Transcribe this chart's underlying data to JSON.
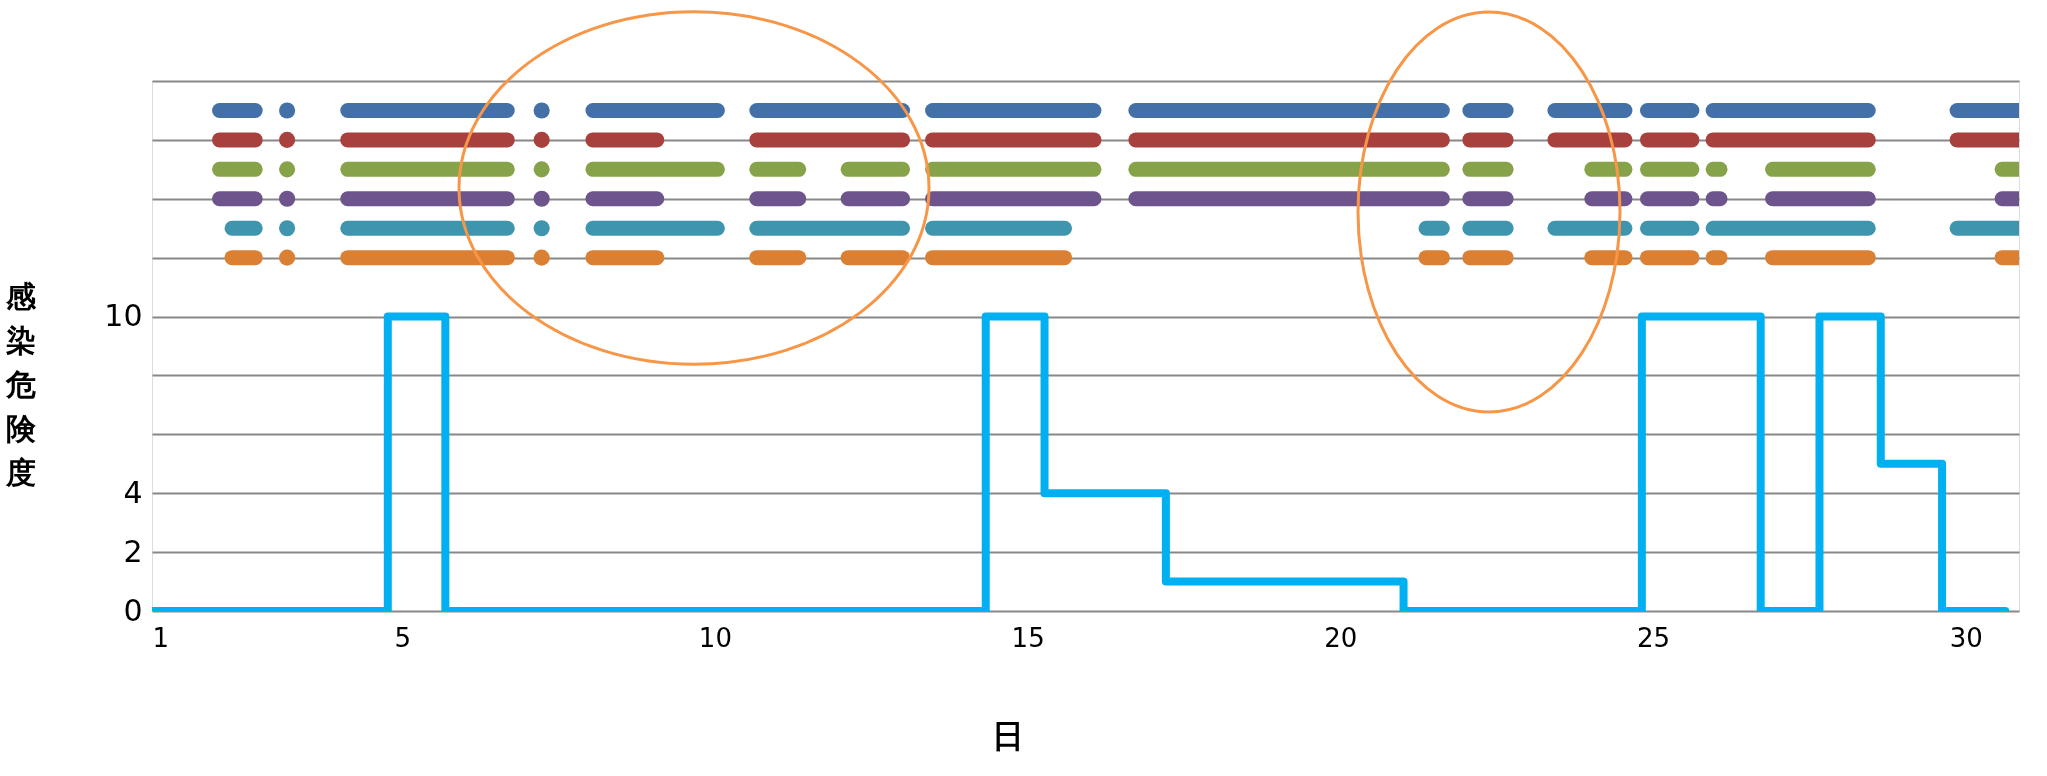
{
  "chart_data": {
    "type": "step",
    "xlabel": "日",
    "ylabel": "感染危険度",
    "xlim": [
      1,
      30.85
    ],
    "ylim": [
      0,
      18
    ],
    "xticks": [
      1,
      5,
      10,
      15,
      20,
      25,
      30
    ],
    "yticks": [
      0,
      2,
      4,
      {
        "value": 6,
        "label": null
      },
      {
        "value": 8,
        "label": null
      },
      10,
      {
        "value": 12,
        "label": null
      },
      {
        "value": 14,
        "label": null
      },
      {
        "value": 16,
        "label": null
      },
      {
        "value": 18,
        "label": null
      }
    ],
    "grid": "y",
    "line_style": "solid",
    "series": [
      {
        "type": "step",
        "color": "#00b0f0",
        "x": [
          1,
          4.77,
          5.69,
          14.33,
          15.27,
          17.21,
          21.01,
          24.82,
          26.72,
          27.66,
          28.64,
          29.62,
          30.63
        ],
        "values": [
          0,
          10,
          0,
          10,
          4,
          1,
          0,
          10,
          0,
          10,
          5,
          0,
          0
        ]
      },
      {
        "type": "line",
        "color": "#4470a8",
        "x": [
          2.08,
          2.65,
          3.6,
          4.13,
          6.68,
          7.6,
          8.05,
          10.04,
          10.3,
          10.67,
          13.0,
          13.2,
          13.48,
          16.06,
          16.4,
          16.73,
          21.63,
          21.8,
          22.07,
          22.65,
          23.0,
          23.43,
          24.55,
          24.7,
          24.91,
          25.62,
          25.8,
          25.96,
          28.44,
          29.1,
          29.86,
          30.85
        ],
        "values": [
          17,
          17,
          null,
          17,
          17,
          null,
          17,
          17,
          null,
          17,
          17,
          null,
          17,
          17,
          null,
          17,
          17,
          null,
          17,
          17,
          null,
          17,
          17,
          null,
          17,
          17,
          null,
          17,
          17,
          null,
          17,
          17
        ]
      },
      {
        "type": "line",
        "color": "#a8403e",
        "x": [
          2.08,
          2.65,
          3.6,
          4.13,
          6.68,
          7.6,
          8.05,
          9.07,
          9.8,
          10.67,
          13.0,
          13.2,
          13.48,
          16.06,
          16.4,
          16.73,
          21.63,
          21.8,
          22.07,
          22.65,
          23.0,
          23.43,
          24.55,
          24.7,
          24.91,
          25.62,
          25.8,
          25.96,
          28.44,
          29.1,
          29.86,
          30.85
        ],
        "values": [
          16,
          16,
          null,
          16,
          16,
          null,
          16,
          16,
          null,
          16,
          16,
          null,
          16,
          16,
          null,
          16,
          16,
          null,
          16,
          16,
          null,
          16,
          16,
          null,
          16,
          16,
          null,
          16,
          16,
          null,
          16,
          16
        ]
      },
      {
        "type": "line",
        "color": "#86a34a",
        "x": [
          2.08,
          2.65,
          3.6,
          4.13,
          6.68,
          7.6,
          8.05,
          10.04,
          10.3,
          10.67,
          11.34,
          11.7,
          12.13,
          13.0,
          13.2,
          13.48,
          16.06,
          16.4,
          16.73,
          21.63,
          21.8,
          22.07,
          22.65,
          23.3,
          24.02,
          24.55,
          24.7,
          24.91,
          25.62,
          25.8,
          25.96,
          26.07,
          26.5,
          26.91,
          28.44,
          29.5,
          30.58,
          30.85
        ],
        "values": [
          15,
          15,
          null,
          15,
          15,
          null,
          15,
          15,
          null,
          15,
          15,
          null,
          15,
          15,
          null,
          15,
          15,
          null,
          15,
          15,
          null,
          15,
          15,
          null,
          15,
          15,
          null,
          15,
          15,
          null,
          15,
          15,
          null,
          15,
          15,
          null,
          15,
          15
        ]
      },
      {
        "type": "line",
        "color": "#6d548d",
        "x": [
          2.08,
          2.65,
          3.6,
          4.13,
          6.68,
          7.6,
          8.05,
          9.07,
          9.8,
          10.67,
          11.34,
          11.7,
          12.13,
          13.0,
          13.2,
          13.48,
          16.06,
          16.4,
          16.73,
          21.63,
          21.8,
          22.07,
          22.65,
          23.3,
          24.02,
          24.55,
          24.7,
          24.91,
          25.62,
          25.8,
          25.96,
          26.07,
          26.5,
          26.91,
          28.44,
          29.5,
          30.58,
          30.85
        ],
        "values": [
          14,
          14,
          null,
          14,
          14,
          null,
          14,
          14,
          null,
          14,
          14,
          null,
          14,
          14,
          null,
          14,
          14,
          null,
          14,
          14,
          null,
          14,
          14,
          null,
          14,
          14,
          null,
          14,
          14,
          null,
          14,
          14,
          null,
          14,
          14,
          null,
          14,
          14
        ]
      },
      {
        "type": "line",
        "color": "#3f95ae",
        "x": [
          2.28,
          2.65,
          3.6,
          4.13,
          6.68,
          7.6,
          8.05,
          10.04,
          10.3,
          10.67,
          13.0,
          13.2,
          13.48,
          15.59,
          18.5,
          21.37,
          21.63,
          21.8,
          22.07,
          22.65,
          23.0,
          23.43,
          24.55,
          24.7,
          24.91,
          25.62,
          25.8,
          25.96,
          28.44,
          29.1,
          29.86,
          30.85
        ],
        "values": [
          13,
          13,
          null,
          13,
          13,
          null,
          13,
          13,
          null,
          13,
          13,
          null,
          13,
          13,
          null,
          13,
          13,
          null,
          13,
          13,
          null,
          13,
          13,
          null,
          13,
          13,
          null,
          13,
          13,
          null,
          13,
          13
        ]
      },
      {
        "type": "line",
        "color": "#db7f33",
        "x": [
          2.28,
          2.65,
          3.6,
          4.13,
          6.68,
          7.6,
          8.05,
          9.07,
          9.8,
          10.67,
          11.34,
          11.7,
          12.13,
          13.0,
          13.2,
          13.48,
          15.59,
          18.5,
          21.37,
          21.63,
          21.8,
          22.07,
          22.65,
          23.3,
          24.02,
          24.55,
          24.7,
          24.91,
          25.62,
          25.8,
          25.96,
          26.07,
          26.5,
          26.91,
          28.44,
          29.5,
          30.58,
          30.85
        ],
        "values": [
          12,
          12,
          null,
          12,
          12,
          null,
          12,
          12,
          null,
          12,
          12,
          null,
          12,
          12,
          null,
          12,
          12,
          null,
          12,
          12,
          null,
          12,
          12,
          null,
          12,
          12,
          null,
          12,
          12,
          null,
          12,
          12,
          null,
          12,
          12,
          null,
          12,
          12
        ]
      },
      {
        "type": "scatter",
        "marker": "circle",
        "color": "#4470a8",
        "x": [
          3.16,
          7.23
        ],
        "values": [
          17,
          17
        ]
      },
      {
        "type": "scatter",
        "marker": "circle",
        "color": "#a8403e",
        "x": [
          3.16,
          7.23
        ],
        "values": [
          16,
          16
        ]
      },
      {
        "type": "scatter",
        "marker": "circle",
        "color": "#86a34a",
        "x": [
          3.16,
          7.23
        ],
        "values": [
          15,
          15
        ]
      },
      {
        "type": "scatter",
        "marker": "circle",
        "color": "#6d548d",
        "x": [
          3.16,
          7.23
        ],
        "values": [
          14,
          14
        ]
      },
      {
        "type": "scatter",
        "marker": "circle",
        "color": "#3f95ae",
        "x": [
          3.16,
          7.23
        ],
        "values": [
          13,
          13
        ]
      },
      {
        "type": "scatter",
        "marker": "circle",
        "color": "#db7f33",
        "x": [
          3.16,
          7.23
        ],
        "values": [
          12,
          12
        ]
      }
    ]
  }
}
